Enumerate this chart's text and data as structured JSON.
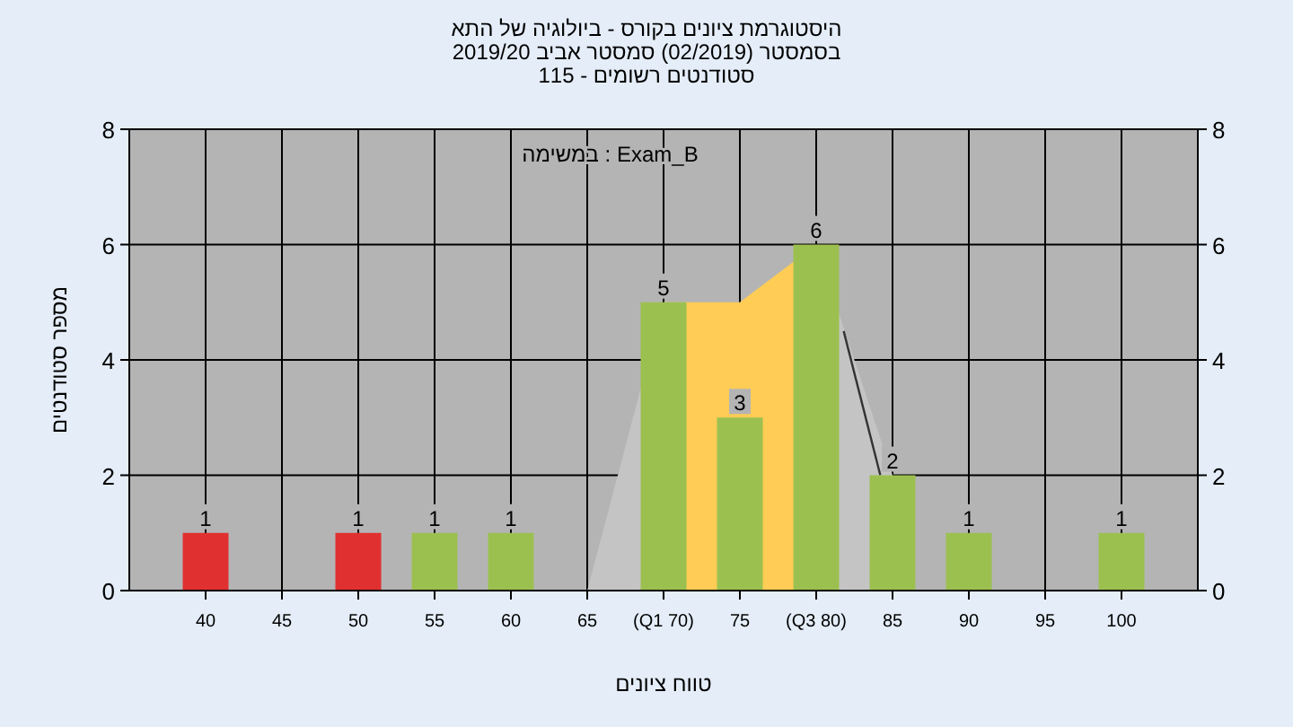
{
  "chart_data": {
    "type": "bar",
    "title": "היסטוגרמת ציונים בקורס - ביולוגיה של התא",
    "subtitle": "בסמסטר  (02/2019)  סמסטר אביב 2019/20\n115 - סטודנטים רשומים",
    "xlabel": "טווח ציונים",
    "ylabel": "מספר סטודנטים",
    "annotations": [
      "במשימה : Exam_B"
    ],
    "x": [
      40,
      50,
      55,
      60,
      70,
      75,
      80,
      85,
      90,
      100
    ],
    "series": [
      {
        "type": "area",
        "color": "#c4c4c4",
        "x": [
          65,
          70
        ],
        "values": [
          0,
          5
        ]
      },
      {
        "type": "area",
        "color": "#c4c4c4",
        "x": [
          80,
          85
        ],
        "values": [
          6,
          2
        ]
      },
      {
        "type": "area",
        "color": "#ffcc55",
        "x": [
          70,
          75,
          80
        ],
        "values": [
          5,
          5,
          6
        ]
      },
      {
        "type": "line",
        "color": "#333333",
        "x": [
          81.8,
          84.2
        ],
        "values": [
          4.5,
          2
        ]
      },
      {
        "colors": [
          "#e03030",
          "#e03030",
          "#9cc050",
          "#9cc050",
          "#9cc050",
          "#9cc050",
          "#9cc050",
          "#9cc050",
          "#9cc050",
          "#9cc050"
        ],
        "values": [
          1,
          1,
          1,
          1,
          5,
          3,
          6,
          2,
          1,
          1
        ],
        "value_labels": [
          "1",
          "1",
          "1",
          "1",
          "5",
          "3",
          "6",
          "2",
          "1",
          "1"
        ]
      }
    ],
    "xlim": [
      35,
      105
    ],
    "xticks": [
      40,
      45,
      50,
      55,
      60,
      65,
      {
        "value": 70,
        "label": "(Q1 70)"
      },
      75,
      {
        "value": 80,
        "label": "(Q3 80)"
      },
      85,
      90,
      95,
      100
    ],
    "ylim": [
      0,
      8
    ],
    "yticks": [
      0,
      2,
      4,
      6,
      8
    ],
    "y2lim": [
      0,
      8
    ],
    "y2ticks": [
      0,
      2,
      4,
      6,
      8
    ],
    "grid": true
  }
}
